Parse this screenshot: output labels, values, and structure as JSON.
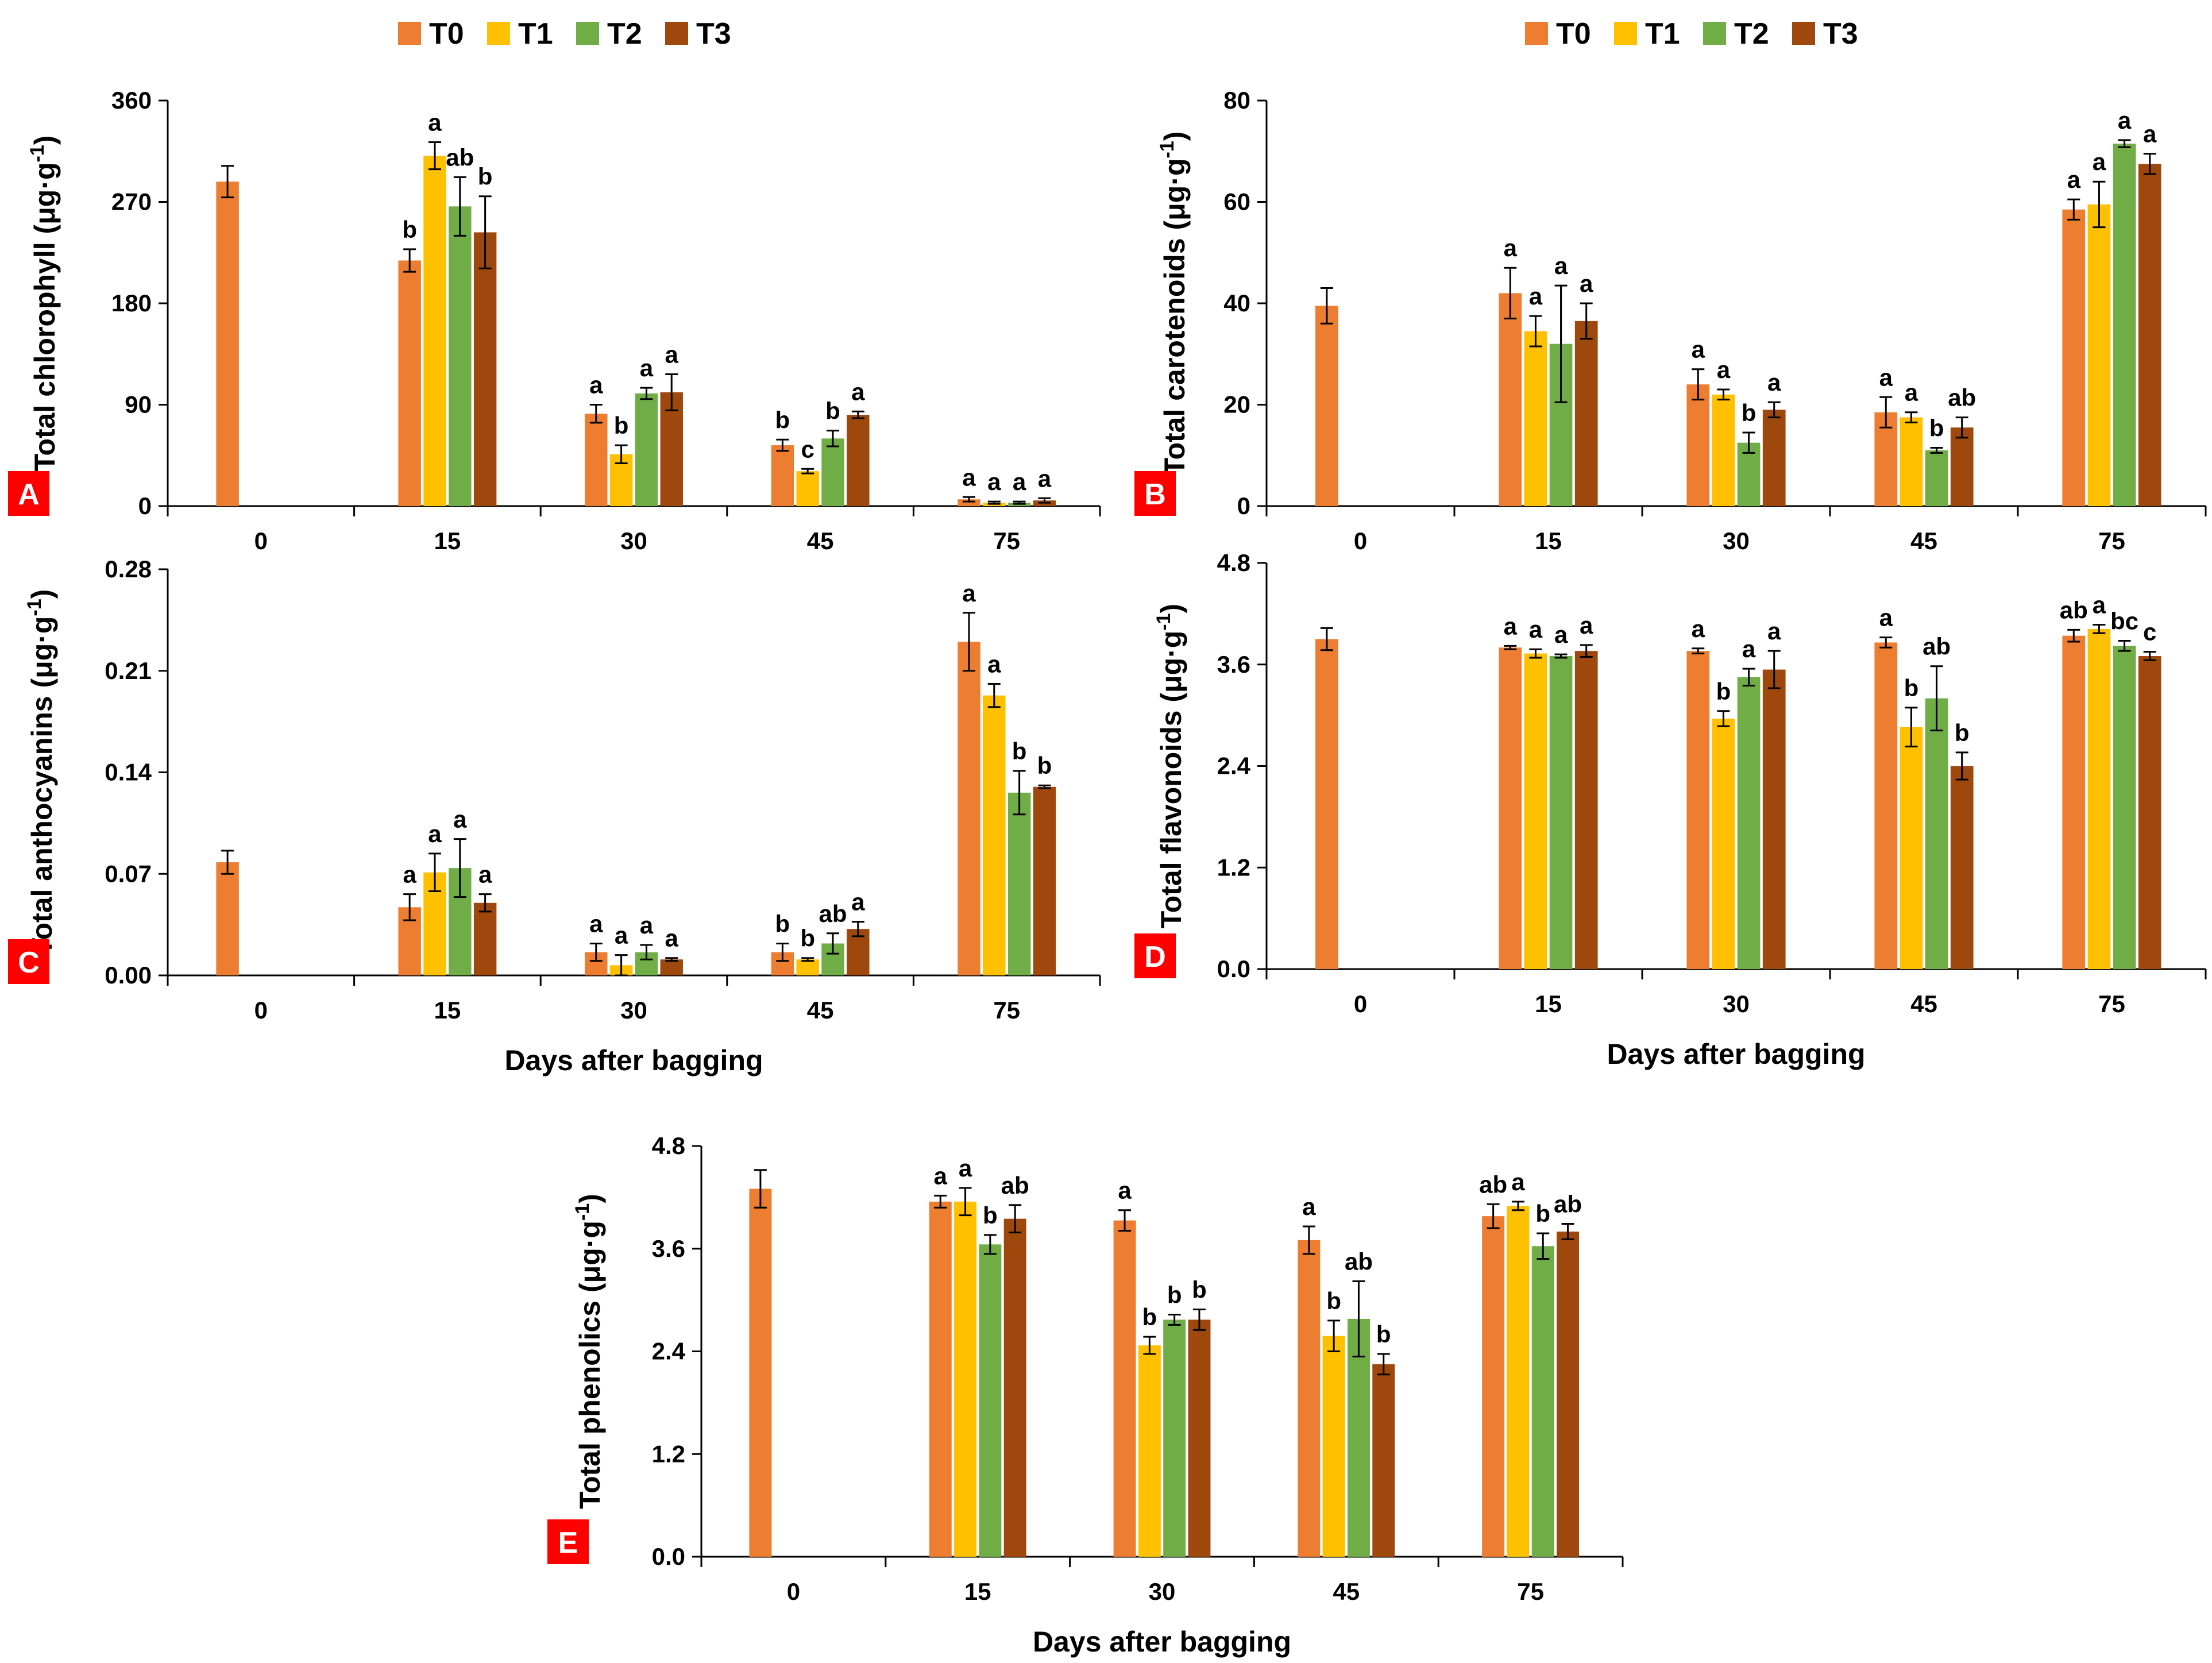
{
  "colors": {
    "T0": "#ED7D31",
    "T1": "#FFC000",
    "T2": "#70AD47",
    "T3": "#9E480E",
    "panel_label_bg": "#FF0000"
  },
  "legend_top_left": [
    "T0",
    "T1",
    "T2",
    "T3"
  ],
  "legend_top_right": [
    "T0",
    "T1",
    "T2",
    "T3"
  ],
  "chart_data": [
    {
      "id": "A",
      "type": "bar",
      "panel_label": "A",
      "ylabel_main": "Total chlorophyll (μg·g",
      "ylabel_sup": "-1",
      "ylabel_end": ")",
      "xlabel": "",
      "categories": [
        "0",
        "15",
        "30",
        "45",
        "75"
      ],
      "ylim": [
        0,
        360
      ],
      "yticks": [
        "0",
        "90",
        "180",
        "270",
        "360"
      ],
      "series": [
        {
          "name": "T0",
          "values": [
            288,
            218,
            82,
            54,
            6
          ],
          "errors": [
            14,
            10,
            8,
            5,
            2
          ],
          "letters": [
            "",
            "b",
            "a",
            "b",
            "a"
          ]
        },
        {
          "name": "T1",
          "values": [
            null,
            311,
            46,
            31,
            3
          ],
          "errors": [
            null,
            12,
            8,
            2,
            1
          ],
          "letters": [
            "",
            "a",
            "b",
            "c",
            "a"
          ]
        },
        {
          "name": "T2",
          "values": [
            null,
            266,
            100,
            60,
            3
          ],
          "errors": [
            null,
            26,
            5,
            7,
            1
          ],
          "letters": [
            "",
            "ab",
            "a",
            "b",
            "a"
          ]
        },
        {
          "name": "T3",
          "values": [
            null,
            243,
            101,
            81,
            5
          ],
          "errors": [
            null,
            32,
            16,
            3,
            2
          ],
          "letters": [
            "",
            "b",
            "a",
            "a",
            "a"
          ]
        }
      ]
    },
    {
      "id": "B",
      "type": "bar",
      "panel_label": "B",
      "ylabel_main": "Total carotenoids (μg·g",
      "ylabel_sup": "-1",
      "ylabel_end": ")",
      "xlabel": "",
      "categories": [
        "0",
        "15",
        "30",
        "45",
        "75"
      ],
      "ylim": [
        0,
        80
      ],
      "yticks": [
        "0",
        "20",
        "40",
        "60",
        "80"
      ],
      "series": [
        {
          "name": "T0",
          "values": [
            39.5,
            42,
            24,
            18.5,
            58.5
          ],
          "errors": [
            3.5,
            5,
            3,
            3,
            2
          ],
          "letters": [
            "",
            "a",
            "a",
            "a",
            "a"
          ]
        },
        {
          "name": "T1",
          "values": [
            null,
            34.5,
            22,
            17.5,
            59.5
          ],
          "errors": [
            null,
            3,
            1,
            1,
            4.5
          ],
          "letters": [
            "",
            "a",
            "a",
            "a",
            "a"
          ]
        },
        {
          "name": "T2",
          "values": [
            null,
            32,
            12.5,
            11,
            71.5
          ],
          "errors": [
            null,
            11.5,
            2,
            0.5,
            0.7
          ],
          "letters": [
            "",
            "a",
            "b",
            "b",
            "a"
          ]
        },
        {
          "name": "T3",
          "values": [
            null,
            36.5,
            19,
            15.5,
            67.5
          ],
          "errors": [
            null,
            3.5,
            1.5,
            2,
            2
          ],
          "letters": [
            "",
            "a",
            "a",
            "ab",
            "a"
          ]
        }
      ]
    },
    {
      "id": "C",
      "type": "bar",
      "panel_label": "C",
      "ylabel_main": "Total anthocyanins (μg·g",
      "ylabel_sup": "-1",
      "ylabel_end": ")",
      "xlabel": "Days after bagging",
      "categories": [
        "0",
        "15",
        "30",
        "45",
        "75"
      ],
      "ylim": [
        0,
        0.28
      ],
      "yticks": [
        "0.00",
        "0.07",
        "0.14",
        "0.21",
        "0.28"
      ],
      "series": [
        {
          "name": "T0",
          "values": [
            0.078,
            0.047,
            0.016,
            0.016,
            0.23
          ],
          "errors": [
            0.008,
            0.009,
            0.006,
            0.006,
            0.02
          ],
          "letters": [
            "",
            "a",
            "a",
            "b",
            "a"
          ]
        },
        {
          "name": "T1",
          "values": [
            null,
            0.071,
            0.007,
            0.011,
            0.193
          ],
          "errors": [
            null,
            0.013,
            0.007,
            0.001,
            0.008
          ],
          "letters": [
            "",
            "a",
            "a",
            "b",
            "a"
          ]
        },
        {
          "name": "T2",
          "values": [
            null,
            0.074,
            0.016,
            0.022,
            0.126
          ],
          "errors": [
            null,
            0.02,
            0.005,
            0.007,
            0.015
          ],
          "letters": [
            "",
            "a",
            "a",
            "ab",
            "b"
          ]
        },
        {
          "name": "T3",
          "values": [
            null,
            0.05,
            0.011,
            0.032,
            0.13
          ],
          "errors": [
            null,
            0.006,
            0.001,
            0.005,
            0.001
          ],
          "letters": [
            "",
            "a",
            "a",
            "a",
            "b"
          ]
        }
      ]
    },
    {
      "id": "D",
      "type": "bar",
      "panel_label": "D",
      "ylabel_main": "Total flavonoids (μg·g",
      "ylabel_sup": "-1",
      "ylabel_end": ")",
      "xlabel": "Days after bagging",
      "categories": [
        "0",
        "15",
        "30",
        "45",
        "75"
      ],
      "ylim": [
        0,
        4.8
      ],
      "yticks": [
        "0.0",
        "1.2",
        "2.4",
        "3.6",
        "4.8"
      ],
      "series": [
        {
          "name": "T0",
          "values": [
            3.9,
            3.8,
            3.76,
            3.86,
            3.94
          ],
          "errors": [
            0.13,
            0.02,
            0.03,
            0.06,
            0.07
          ],
          "letters": [
            "",
            "a",
            "a",
            "a",
            "ab"
          ]
        },
        {
          "name": "T1",
          "values": [
            null,
            3.73,
            2.96,
            2.86,
            4.02
          ],
          "errors": [
            null,
            0.05,
            0.09,
            0.23,
            0.05
          ],
          "letters": [
            "",
            "a",
            "b",
            "b",
            "a"
          ]
        },
        {
          "name": "T2",
          "values": [
            null,
            3.7,
            3.45,
            3.2,
            3.82
          ],
          "errors": [
            null,
            0.02,
            0.1,
            0.38,
            0.06
          ],
          "letters": [
            "",
            "a",
            "a",
            "ab",
            "bc"
          ]
        },
        {
          "name": "T3",
          "values": [
            null,
            3.76,
            3.54,
            2.4,
            3.7
          ],
          "errors": [
            null,
            0.07,
            0.22,
            0.16,
            0.05
          ],
          "letters": [
            "",
            "a",
            "a",
            "b",
            "c"
          ]
        }
      ]
    },
    {
      "id": "E",
      "type": "bar",
      "panel_label": "E",
      "ylabel_main": "Total phenolics (μg·g",
      "ylabel_sup": "-1",
      "ylabel_end": ")",
      "xlabel": "Days after bagging",
      "categories": [
        "0",
        "15",
        "30",
        "45",
        "75"
      ],
      "ylim": [
        0,
        4.8
      ],
      "yticks": [
        "0.0",
        "1.2",
        "2.4",
        "3.6",
        "4.8"
      ],
      "series": [
        {
          "name": "T0",
          "values": [
            4.3,
            4.15,
            3.93,
            3.7,
            3.98
          ],
          "errors": [
            0.22,
            0.07,
            0.12,
            0.16,
            0.14
          ],
          "letters": [
            "",
            "a",
            "a",
            "a",
            "ab"
          ]
        },
        {
          "name": "T1",
          "values": [
            null,
            4.15,
            2.47,
            2.58,
            4.1
          ],
          "errors": [
            null,
            0.16,
            0.1,
            0.18,
            0.05
          ],
          "letters": [
            "",
            "a",
            "b",
            "b",
            "a"
          ]
        },
        {
          "name": "T2",
          "values": [
            null,
            3.65,
            2.77,
            2.78,
            3.63
          ],
          "errors": [
            null,
            0.11,
            0.06,
            0.44,
            0.15
          ],
          "letters": [
            "",
            "b",
            "b",
            "ab",
            "b"
          ]
        },
        {
          "name": "T3",
          "values": [
            null,
            3.95,
            2.77,
            2.25,
            3.8
          ],
          "errors": [
            null,
            0.16,
            0.12,
            0.12,
            0.09
          ],
          "letters": [
            "",
            "ab",
            "b",
            "b",
            "ab"
          ]
        }
      ]
    }
  ]
}
